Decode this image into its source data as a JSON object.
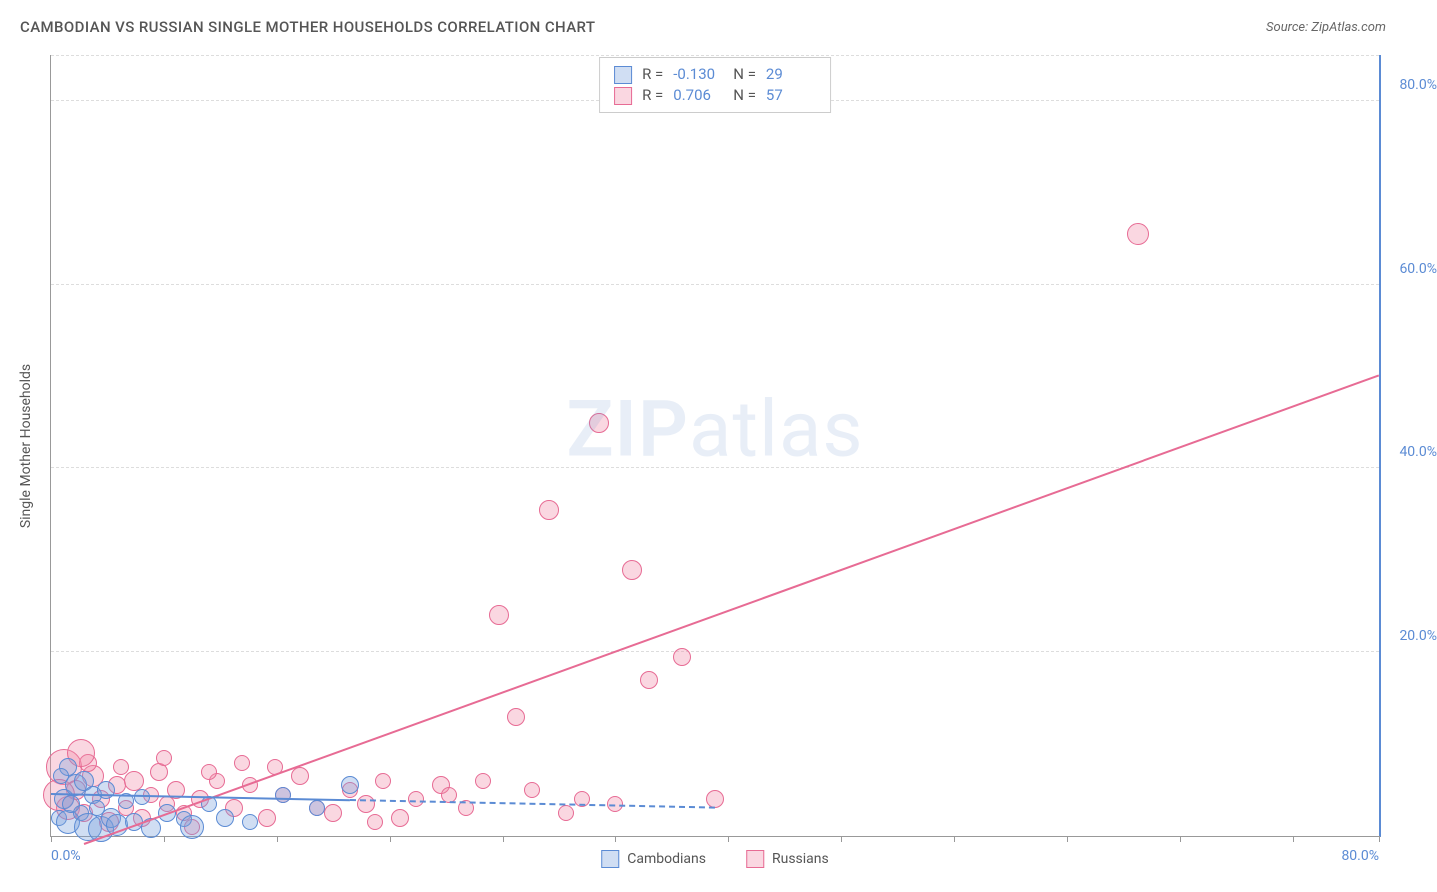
{
  "header": {
    "title": "CAMBODIAN VS RUSSIAN SINGLE MOTHER HOUSEHOLDS CORRELATION CHART",
    "source": "Source: ZipAtlas.com"
  },
  "chart": {
    "type": "scatter",
    "ylabel": "Single Mother Households",
    "xlim": [
      0,
      80
    ],
    "ylim": [
      0,
      85
    ],
    "xtick_positions": [
      0,
      6.8,
      13.6,
      20.4,
      27.2,
      34,
      40.8,
      47.6,
      54.4,
      61.2,
      68,
      74.8,
      80
    ],
    "xtick_labels": {
      "0": "0.0%",
      "80": "80.0%"
    },
    "yticks": [
      20,
      40,
      60,
      80
    ],
    "ytick_labels": [
      "20.0%",
      "40.0%",
      "60.0%",
      "80.0%"
    ],
    "grid_color": "#dddddd",
    "axis_color": "#999999",
    "right_axis_color": "#5b8bd4",
    "tick_label_color": "#5b8bd4",
    "background_color": "#ffffff",
    "watermark": {
      "text_bold": "ZIP",
      "text_rest": "atlas",
      "color": "rgba(100,140,200,0.15)",
      "fontsize": 78
    }
  },
  "series": {
    "cambodians": {
      "label": "Cambodians",
      "fill": "rgba(120,160,220,0.35)",
      "stroke": "#5b8bd4",
      "R": "-0.130",
      "N": "29",
      "trend": {
        "x1": 0,
        "y1": 4.5,
        "x2": 40,
        "y2": 3.0,
        "solid_until_x": 18,
        "color": "#5b8bd4"
      },
      "points": [
        {
          "x": 0.5,
          "y": 2.0,
          "r": 8
        },
        {
          "x": 0.8,
          "y": 4.0,
          "r": 10
        },
        {
          "x": 1.0,
          "y": 1.5,
          "r": 12
        },
        {
          "x": 1.2,
          "y": 3.5,
          "r": 9
        },
        {
          "x": 1.5,
          "y": 5.5,
          "r": 11
        },
        {
          "x": 1.8,
          "y": 2.5,
          "r": 8
        },
        {
          "x": 2.0,
          "y": 6.0,
          "r": 10
        },
        {
          "x": 2.2,
          "y": 1.0,
          "r": 14
        },
        {
          "x": 2.5,
          "y": 4.5,
          "r": 9
        },
        {
          "x": 2.8,
          "y": 3.0,
          "r": 8
        },
        {
          "x": 3.0,
          "y": 0.8,
          "r": 13
        },
        {
          "x": 3.3,
          "y": 5.0,
          "r": 9
        },
        {
          "x": 3.6,
          "y": 2.0,
          "r": 10
        },
        {
          "x": 4.0,
          "y": 1.2,
          "r": 11
        },
        {
          "x": 4.5,
          "y": 3.8,
          "r": 8
        },
        {
          "x": 5.0,
          "y": 1.5,
          "r": 9
        },
        {
          "x": 5.5,
          "y": 4.2,
          "r": 8
        },
        {
          "x": 6.0,
          "y": 0.9,
          "r": 10
        },
        {
          "x": 7.0,
          "y": 2.5,
          "r": 9
        },
        {
          "x": 8.0,
          "y": 1.8,
          "r": 8
        },
        {
          "x": 8.5,
          "y": 1.0,
          "r": 12
        },
        {
          "x": 9.5,
          "y": 3.5,
          "r": 8
        },
        {
          "x": 10.5,
          "y": 2.0,
          "r": 9
        },
        {
          "x": 12.0,
          "y": 1.5,
          "r": 8
        },
        {
          "x": 14.0,
          "y": 4.5,
          "r": 8
        },
        {
          "x": 16.0,
          "y": 3.0,
          "r": 8
        },
        {
          "x": 18.0,
          "y": 5.5,
          "r": 9
        },
        {
          "x": 1.0,
          "y": 7.5,
          "r": 9
        },
        {
          "x": 0.6,
          "y": 6.5,
          "r": 8
        }
      ]
    },
    "russians": {
      "label": "Russians",
      "fill": "rgba(240,140,170,0.35)",
      "stroke": "#e76b94",
      "R": "0.706",
      "N": "57",
      "trend": {
        "x1": 2,
        "y1": -1,
        "x2": 80,
        "y2": 50,
        "solid_until_x": 80,
        "color": "#e76b94"
      },
      "points": [
        {
          "x": 0.8,
          "y": 7.5,
          "r": 18
        },
        {
          "x": 1.0,
          "y": 3.0,
          "r": 12
        },
        {
          "x": 1.5,
          "y": 5.0,
          "r": 10
        },
        {
          "x": 2.0,
          "y": 2.5,
          "r": 9
        },
        {
          "x": 2.5,
          "y": 6.5,
          "r": 11
        },
        {
          "x": 3.0,
          "y": 4.0,
          "r": 9
        },
        {
          "x": 3.5,
          "y": 1.5,
          "r": 10
        },
        {
          "x": 4.0,
          "y": 5.5,
          "r": 9
        },
        {
          "x": 4.5,
          "y": 3.0,
          "r": 8
        },
        {
          "x": 5.0,
          "y": 6.0,
          "r": 10
        },
        {
          "x": 5.5,
          "y": 2.0,
          "r": 9
        },
        {
          "x": 6.0,
          "y": 4.5,
          "r": 8
        },
        {
          "x": 6.5,
          "y": 7.0,
          "r": 9
        },
        {
          "x": 7.0,
          "y": 3.5,
          "r": 8
        },
        {
          "x": 7.5,
          "y": 5.0,
          "r": 9
        },
        {
          "x": 8.0,
          "y": 2.5,
          "r": 8
        },
        {
          "x": 9.0,
          "y": 4.0,
          "r": 9
        },
        {
          "x": 10.0,
          "y": 6.0,
          "r": 8
        },
        {
          "x": 11.0,
          "y": 3.0,
          "r": 9
        },
        {
          "x": 12.0,
          "y": 5.5,
          "r": 8
        },
        {
          "x": 13.0,
          "y": 2.0,
          "r": 9
        },
        {
          "x": 14.0,
          "y": 4.5,
          "r": 8
        },
        {
          "x": 15.0,
          "y": 6.5,
          "r": 9
        },
        {
          "x": 16.0,
          "y": 3.0,
          "r": 8
        },
        {
          "x": 17.0,
          "y": 2.5,
          "r": 9
        },
        {
          "x": 18.0,
          "y": 5.0,
          "r": 8
        },
        {
          "x": 19.0,
          "y": 3.5,
          "r": 9
        },
        {
          "x": 20.0,
          "y": 6.0,
          "r": 8
        },
        {
          "x": 21.0,
          "y": 2.0,
          "r": 9
        },
        {
          "x": 22.0,
          "y": 4.0,
          "r": 8
        },
        {
          "x": 23.5,
          "y": 5.5,
          "r": 9
        },
        {
          "x": 25.0,
          "y": 3.0,
          "r": 8
        },
        {
          "x": 27.0,
          "y": 24.0,
          "r": 10
        },
        {
          "x": 28.0,
          "y": 13.0,
          "r": 9
        },
        {
          "x": 30.0,
          "y": 35.5,
          "r": 10
        },
        {
          "x": 31.0,
          "y": 2.5,
          "r": 8
        },
        {
          "x": 33.0,
          "y": 45.0,
          "r": 10
        },
        {
          "x": 35.0,
          "y": 29.0,
          "r": 10
        },
        {
          "x": 36.0,
          "y": 17.0,
          "r": 9
        },
        {
          "x": 38.0,
          "y": 19.5,
          "r": 9
        },
        {
          "x": 40.0,
          "y": 4.0,
          "r": 9
        },
        {
          "x": 65.5,
          "y": 65.5,
          "r": 11
        },
        {
          "x": 2.2,
          "y": 8.0,
          "r": 9
        },
        {
          "x": 4.2,
          "y": 7.5,
          "r": 8
        },
        {
          "x": 6.8,
          "y": 8.5,
          "r": 8
        },
        {
          "x": 9.5,
          "y": 7.0,
          "r": 8
        },
        {
          "x": 11.5,
          "y": 8.0,
          "r": 8
        },
        {
          "x": 13.5,
          "y": 7.5,
          "r": 8
        },
        {
          "x": 24.0,
          "y": 4.5,
          "r": 8
        },
        {
          "x": 26.0,
          "y": 6.0,
          "r": 8
        },
        {
          "x": 29.0,
          "y": 5.0,
          "r": 8
        },
        {
          "x": 32.0,
          "y": 4.0,
          "r": 8
        },
        {
          "x": 34.0,
          "y": 3.5,
          "r": 8
        },
        {
          "x": 1.8,
          "y": 9.0,
          "r": 14
        },
        {
          "x": 0.5,
          "y": 4.5,
          "r": 16
        },
        {
          "x": 8.5,
          "y": 1.0,
          "r": 8
        },
        {
          "x": 19.5,
          "y": 1.5,
          "r": 8
        }
      ]
    }
  }
}
